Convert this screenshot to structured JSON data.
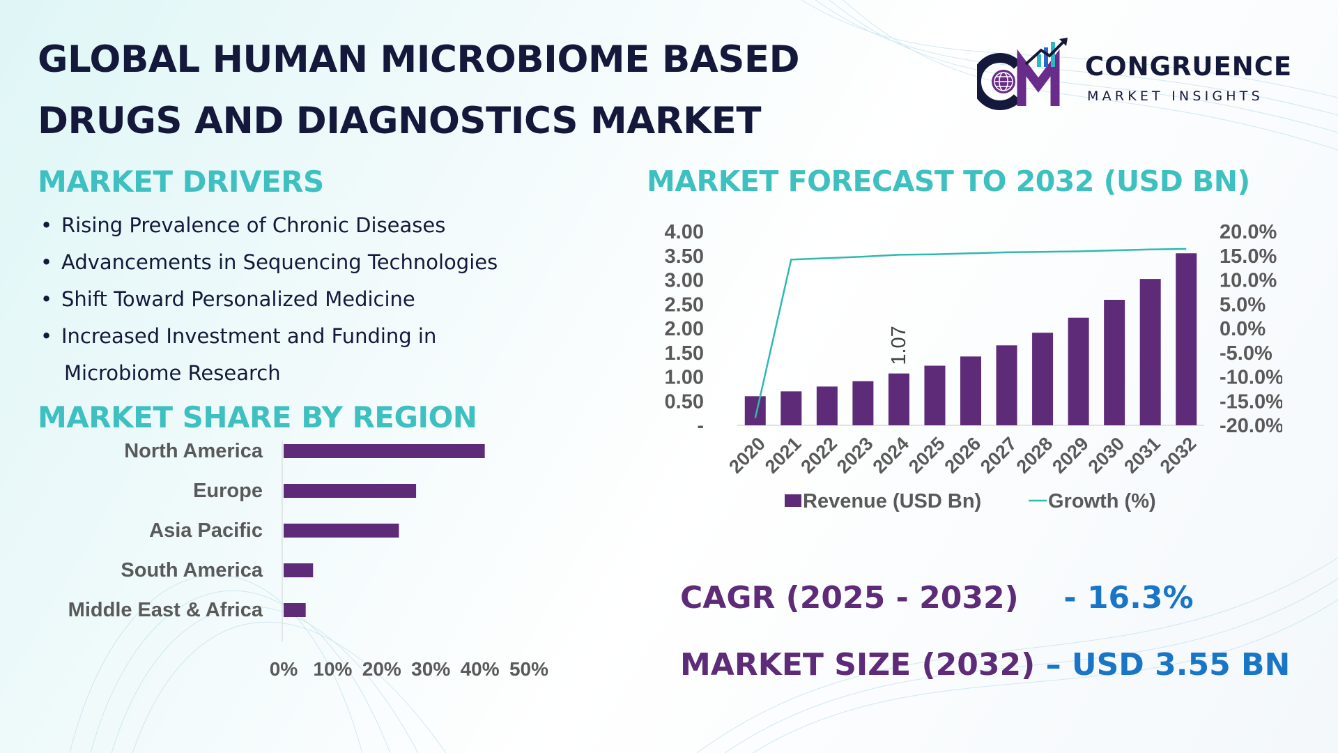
{
  "header": {
    "title_line1": "GLOBAL HUMAN MICROBIOME BASED",
    "title_line2": "DRUGS AND DIAGNOSTICS MARKET"
  },
  "logo": {
    "name": "CONGRUENCE",
    "tagline": "MARKET INSIGHTS",
    "icon": "globe-cm-growth-logo-icon",
    "colors": {
      "navy": "#14183a",
      "purple": "#6a2c8a",
      "teal": "#2fb6c4",
      "blue": "#2a66c8"
    }
  },
  "drivers": {
    "title": "MARKET DRIVERS",
    "items": [
      {
        "text": "Rising Prevalence of Chronic Diseases"
      },
      {
        "text": "Advancements in Sequencing Technologies"
      },
      {
        "text": "Shift Toward Personalized Medicine"
      },
      {
        "text": "Increased Investment and Funding in",
        "text_cont": "Microbiome Research"
      }
    ]
  },
  "region": {
    "title": "MARKET SHARE BY REGION"
  },
  "forecast": {
    "title": "MARKET FORECAST TO 2032 (USD BN)"
  },
  "kpis": {
    "cagr_label": "CAGR (2025 - 2032)",
    "cagr_value": "- 16.3%",
    "size_label": "MARKET SIZE (2032)",
    "size_value": "– USD 3.55 BN"
  },
  "colors": {
    "accent_teal": "#3ec0c0",
    "bar_purple": "#5d2b77",
    "line_teal": "#2fb8b0",
    "value_blue": "#1976c6"
  },
  "chart_data": [
    {
      "type": "bar",
      "orientation": "horizontal",
      "categories": [
        "North America",
        "Europe",
        "Asia Pacific",
        "South America",
        "Middle East & Africa"
      ],
      "values": [
        41,
        27,
        23.5,
        6,
        4.5
      ],
      "unit": "%",
      "xlim": [
        0,
        50
      ],
      "x_ticks": [
        "0%",
        "10%",
        "20%",
        "30%",
        "40%",
        "50%"
      ],
      "grid": false,
      "color": "#5d2b77"
    },
    {
      "type": "bar",
      "combo_line": true,
      "categories": [
        "2020",
        "2021",
        "2022",
        "2023",
        "2024",
        "2025",
        "2026",
        "2027",
        "2028",
        "2029",
        "2030",
        "2031",
        "2032"
      ],
      "series": [
        {
          "name": "Revenue (USD Bn)",
          "type": "bar",
          "axis": "left",
          "color": "#5d2b77",
          "values": [
            0.6,
            0.7,
            0.8,
            0.91,
            1.07,
            1.23,
            1.42,
            1.65,
            1.91,
            2.22,
            2.59,
            3.02,
            3.55
          ]
        },
        {
          "name": "Growth (%)",
          "type": "line",
          "axis": "right",
          "color": "#2fb8b0",
          "values": [
            -18.5,
            14.2,
            14.5,
            14.8,
            15.2,
            15.3,
            15.5,
            15.7,
            15.8,
            15.9,
            16.1,
            16.3,
            16.4
          ]
        }
      ],
      "data_labels": [
        {
          "category": "2024",
          "text": "1.07"
        }
      ],
      "ylim_left": [
        0,
        4
      ],
      "y_ticks_left": [
        "-",
        "0.50",
        "1.00",
        "1.50",
        "2.00",
        "2.50",
        "3.00",
        "3.50",
        "4.00"
      ],
      "ylim_right": [
        -20,
        20
      ],
      "y_ticks_right": [
        "-20.0%",
        "-15.0%",
        "-10.0%",
        "-5.0%",
        "0.0%",
        "5.0%",
        "10.0%",
        "15.0%",
        "20.0%"
      ],
      "legend_position": "bottom",
      "grid": false
    }
  ]
}
